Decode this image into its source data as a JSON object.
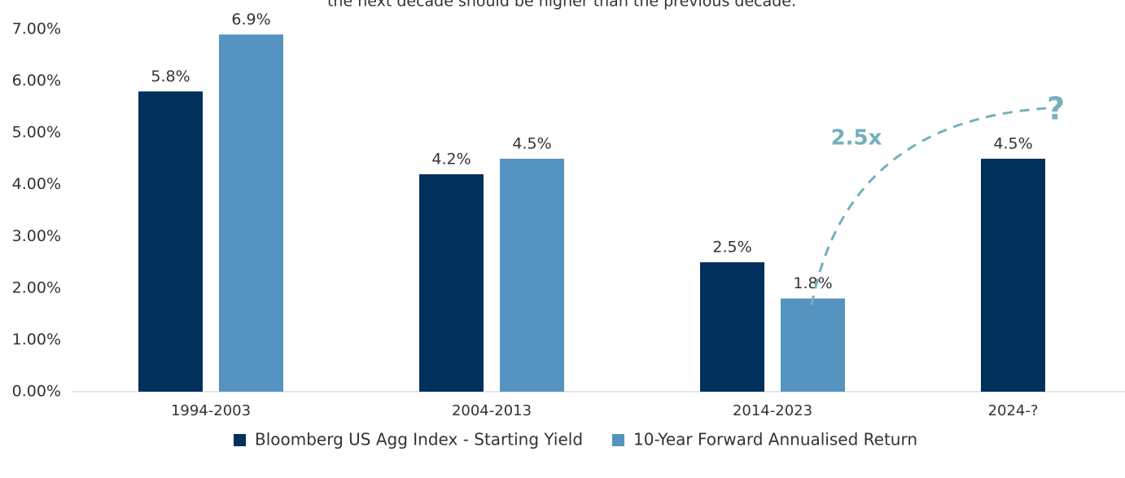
{
  "chart_data": {
    "type": "bar",
    "subtitle": "the next decade should be higher than the previous decade.",
    "categories": [
      "1994-2003",
      "2004-2013",
      "2014-2023",
      "2024-?"
    ],
    "series": [
      {
        "name": "Bloomberg US Agg Index - Starting Yield",
        "color": "#00305c",
        "values": [
          5.8,
          4.2,
          2.5,
          4.5
        ],
        "value_labels": [
          "5.8%",
          "4.2%",
          "2.5%",
          "4.5%"
        ]
      },
      {
        "name": "10-Year Forward Annualised Return",
        "color": "#5594c0",
        "values": [
          6.9,
          4.5,
          1.8,
          null
        ],
        "value_labels": [
          "6.9%",
          "4.5%",
          "1.8%",
          null
        ]
      }
    ],
    "annotations": [
      "2.5x",
      "?"
    ],
    "annotation_color": "#74b0bd",
    "ylim": [
      0,
      7
    ],
    "yticks": [
      {
        "value": 0,
        "label": "0.00%"
      },
      {
        "value": 1,
        "label": "1.00%"
      },
      {
        "value": 2,
        "label": "2.00%"
      },
      {
        "value": 3,
        "label": "3.00%"
      },
      {
        "value": 4,
        "label": "4.00%"
      },
      {
        "value": 5,
        "label": "5.00%"
      },
      {
        "value": 6,
        "label": "6.00%"
      },
      {
        "value": 7,
        "label": "7.00%"
      }
    ],
    "grid": false,
    "legend": "bottom"
  }
}
